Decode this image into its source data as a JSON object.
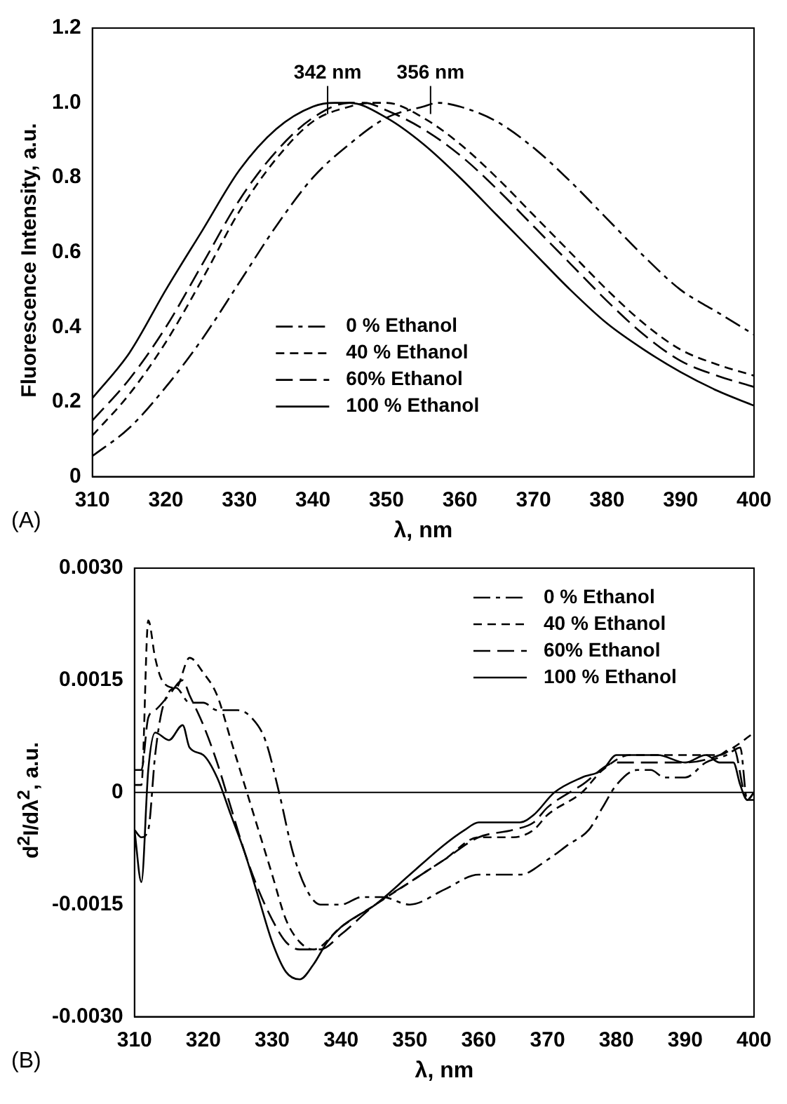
{
  "chart_data": [
    {
      "type": "line",
      "xlabel": "λ, nm",
      "ylabel": "Fluorescence Intensity, a.u.",
      "annotations": [
        {
          "text": "342 nm",
          "x": 342,
          "y": 1.0
        },
        {
          "text": "356 nm",
          "x": 356,
          "y": 1.0
        },
        "(A)"
      ],
      "xlim": [
        310,
        400
      ],
      "xticks": [
        310,
        320,
        330,
        340,
        350,
        360,
        370,
        380,
        390,
        400
      ],
      "ylim": [
        0,
        1.2
      ],
      "yticks": [
        0,
        {
          "value": 0.2,
          "label": "0.2"
        },
        {
          "value": 0.4,
          "label": "0.4"
        },
        {
          "value": 0.6,
          "label": "0.6"
        },
        {
          "value": 0.8,
          "label": "0.8"
        },
        {
          "value": 1,
          "label": "1.0"
        },
        {
          "value": 1.2,
          "label": "1.2"
        }
      ],
      "legend": "bottom",
      "grid": false,
      "series": [
        {
          "name": "0 % Ethanol",
          "color": "#000000",
          "line_style": "dashdot",
          "x": [
            310,
            315,
            320,
            325,
            330,
            335,
            340,
            345,
            350,
            355,
            357,
            360,
            365,
            370,
            375,
            380,
            385,
            390,
            395,
            400
          ],
          "values": [
            0.055,
            0.13,
            0.24,
            0.37,
            0.52,
            0.67,
            0.8,
            0.89,
            0.96,
            0.99,
            1.0,
            0.99,
            0.95,
            0.88,
            0.79,
            0.69,
            0.59,
            0.5,
            0.44,
            0.38
          ]
        },
        {
          "name": "40 % Ethanol",
          "color": "#000000",
          "line_style": "dashed",
          "x": [
            310,
            315,
            320,
            325,
            330,
            335,
            340,
            345,
            348,
            350,
            355,
            360,
            365,
            370,
            375,
            380,
            385,
            390,
            395,
            400
          ],
          "values": [
            0.11,
            0.22,
            0.36,
            0.53,
            0.71,
            0.85,
            0.95,
            0.99,
            1.0,
            1.0,
            0.96,
            0.89,
            0.8,
            0.7,
            0.6,
            0.5,
            0.41,
            0.34,
            0.3,
            0.27
          ]
        },
        {
          "name": "60% Ethanol",
          "color": "#000000",
          "line_style": "longdash",
          "x": [
            310,
            315,
            320,
            325,
            330,
            335,
            340,
            345,
            347,
            350,
            355,
            360,
            365,
            370,
            375,
            380,
            385,
            390,
            395,
            400
          ],
          "values": [
            0.15,
            0.26,
            0.4,
            0.57,
            0.74,
            0.87,
            0.96,
            1.0,
            1.0,
            0.98,
            0.93,
            0.86,
            0.77,
            0.67,
            0.57,
            0.47,
            0.38,
            0.31,
            0.27,
            0.24
          ]
        },
        {
          "name": "100 % Ethanol",
          "color": "#000000",
          "line_style": "solid",
          "x": [
            310,
            315,
            320,
            325,
            330,
            335,
            340,
            343,
            345,
            350,
            355,
            360,
            365,
            370,
            375,
            380,
            385,
            390,
            395,
            400
          ],
          "values": [
            0.21,
            0.33,
            0.5,
            0.66,
            0.82,
            0.93,
            0.99,
            1.0,
            1.0,
            0.96,
            0.89,
            0.8,
            0.7,
            0.6,
            0.5,
            0.41,
            0.34,
            0.28,
            0.23,
            0.19
          ]
        }
      ]
    },
    {
      "type": "line",
      "xlabel": "λ, nm",
      "ylabel": "d$^{2}$I/dλ$^{2}$, a.u.",
      "annotations": [
        "(B)"
      ],
      "xlim": [
        310,
        400
      ],
      "xticks": [
        310,
        320,
        330,
        340,
        350,
        360,
        370,
        380,
        390,
        400
      ],
      "ylim": [
        -0.003,
        0.003
      ],
      "yticks": [
        {
          "value": -0.003,
          "label": "-0.0030"
        },
        {
          "value": -0.0015,
          "label": "-0.0015"
        },
        0,
        {
          "value": 0.0015,
          "label": "0.0015"
        },
        {
          "value": 0.003,
          "label": "0.0030"
        }
      ],
      "legend": "top right",
      "grid": false,
      "ref_lines": [
        {
          "axis": "y",
          "value": 0,
          "label": null,
          "color": "#000000",
          "line_style": "solid"
        }
      ],
      "series": [
        {
          "name": "0 % Ethanol",
          "color": "#000000",
          "line_style": "dashdot",
          "x": [
            310,
            311,
            312,
            313,
            314,
            316,
            318,
            320,
            322,
            325,
            327,
            329,
            331,
            333,
            335,
            337,
            340,
            343,
            346,
            350,
            355,
            360,
            363,
            366,
            370,
            373,
            376,
            378,
            380,
            383,
            385,
            387,
            390,
            393,
            396,
            398,
            399,
            400
          ],
          "values": [
            -0.0005,
            -0.0006,
            -0.0005,
            0.0005,
            0.0011,
            0.0014,
            0.0012,
            0.0012,
            0.0011,
            0.0011,
            0.001,
            0.0007,
            0.0,
            -0.0008,
            -0.0013,
            -0.0015,
            -0.0015,
            -0.0014,
            -0.0014,
            -0.0015,
            -0.0013,
            -0.0011,
            -0.0011,
            -0.0011,
            -0.0009,
            -0.0007,
            -0.0005,
            -0.0002,
            0.0001,
            0.0003,
            0.0003,
            0.0002,
            0.0002,
            0.0004,
            0.0005,
            0.0006,
            -0.0001,
            0.0
          ]
        },
        {
          "name": "40 % Ethanol",
          "color": "#000000",
          "line_style": "dashed",
          "x": [
            310,
            311,
            312,
            313,
            314,
            316,
            318,
            320,
            322,
            324,
            326,
            328,
            330,
            332,
            334,
            336,
            340,
            345,
            350,
            355,
            360,
            365,
            368,
            370,
            375,
            378,
            382,
            386,
            390,
            395,
            397,
            400
          ],
          "values": [
            0.0001,
            0.0001,
            0.0023,
            0.0018,
            0.0015,
            0.0014,
            0.0018,
            0.0016,
            0.0013,
            0.0007,
            0.0001,
            -0.0005,
            -0.0011,
            -0.0017,
            -0.002,
            -0.0021,
            -0.0018,
            -0.0015,
            -0.0012,
            -0.0009,
            -0.0006,
            -0.0006,
            -0.0005,
            -0.0003,
            0.0,
            0.0003,
            0.0005,
            0.0005,
            0.0005,
            0.0005,
            0.0006,
            0.0008
          ]
        },
        {
          "name": "60% Ethanol",
          "color": "#000000",
          "line_style": "longdash",
          "x": [
            310,
            311,
            312,
            313,
            315,
            317,
            318,
            320,
            322,
            324,
            326,
            328,
            330,
            332,
            334,
            337,
            340,
            345,
            350,
            355,
            360,
            365,
            368,
            370,
            375,
            380,
            383,
            390,
            395,
            397,
            399,
            400
          ],
          "values": [
            0.0003,
            0.0003,
            0.001,
            0.0011,
            0.0013,
            0.0015,
            0.0013,
            0.0009,
            0.0004,
            -0.0002,
            -0.0008,
            -0.0013,
            -0.0017,
            -0.002,
            -0.0021,
            -0.0021,
            -0.0019,
            -0.0015,
            -0.0012,
            -0.0009,
            -0.0006,
            -0.0005,
            -0.0004,
            -0.0002,
            0.0001,
            0.0004,
            0.0004,
            0.0004,
            0.0005,
            0.0006,
            -0.0001,
            0.0
          ]
        },
        {
          "name": "100 % Ethanol",
          "color": "#000000",
          "line_style": "solid",
          "x": [
            310,
            311,
            312,
            313,
            315,
            317,
            318,
            320,
            322,
            324,
            326,
            328,
            330,
            332,
            334,
            336,
            338,
            340,
            345,
            350,
            355,
            358,
            360,
            363,
            366,
            368,
            371,
            375,
            378,
            380,
            383,
            386,
            390,
            393,
            395,
            397,
            398,
            399,
            400
          ],
          "values": [
            -0.0005,
            -0.0012,
            0.0003,
            0.0008,
            0.0007,
            0.0009,
            0.0006,
            0.0005,
            0.0002,
            -0.0003,
            -0.0008,
            -0.0014,
            -0.002,
            -0.0024,
            -0.0025,
            -0.0023,
            -0.002,
            -0.0018,
            -0.0015,
            -0.0011,
            -0.0007,
            -0.0005,
            -0.0004,
            -0.0004,
            -0.0004,
            -0.0003,
            0.0,
            0.0002,
            0.0003,
            0.0005,
            0.0005,
            0.0005,
            0.0004,
            0.0005,
            0.0004,
            0.0004,
            0.0001,
            -0.0001,
            -0.0001
          ]
        }
      ]
    }
  ]
}
